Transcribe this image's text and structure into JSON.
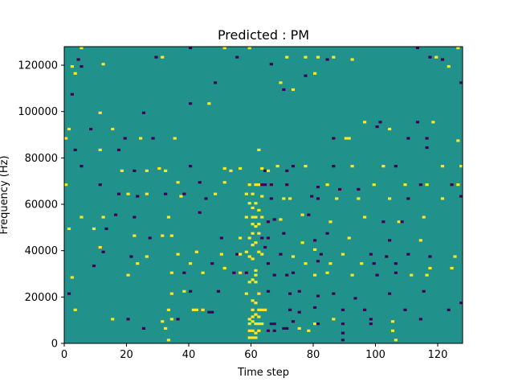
{
  "chart_data": {
    "type": "heatmap",
    "title": "Predicted : PM",
    "xlabel": "Time step",
    "ylabel": "Frequency (Hz)",
    "xlim": [
      0,
      128
    ],
    "ylim": [
      0,
      128000
    ],
    "xticks": [
      0,
      20,
      40,
      60,
      80,
      100,
      120
    ],
    "yticks": [
      0,
      20000,
      40000,
      60000,
      80000,
      100000,
      120000
    ],
    "ytick_labels": [
      "0",
      "20000",
      "40000",
      "60000",
      "80000",
      "100000",
      "120000"
    ],
    "n_freq_bins": 128,
    "value_scale": {
      "min": -1,
      "max": 1
    },
    "colors": {
      "-1": "#440154",
      "0": "#21918c",
      "1": "#fde725"
    },
    "background_value": 0,
    "cells_note_format": "[time_step, freq_bin_index, value]",
    "cells": [
      [
        5,
        127,
        1
      ],
      [
        40,
        127,
        -1
      ],
      [
        51,
        127,
        1
      ],
      [
        59,
        127,
        1
      ],
      [
        113,
        127,
        -1
      ],
      [
        126,
        127,
        1
      ],
      [
        4,
        122,
        -1
      ],
      [
        29,
        123,
        -1
      ],
      [
        31,
        123,
        1
      ],
      [
        55,
        123,
        -1
      ],
      [
        71,
        123,
        1
      ],
      [
        77,
        123,
        1
      ],
      [
        81,
        123,
        1
      ],
      [
        84,
        122,
        -1
      ],
      [
        86,
        123,
        1
      ],
      [
        117,
        123,
        -1
      ],
      [
        119,
        123,
        1
      ],
      [
        121,
        122,
        -1
      ],
      [
        2,
        119,
        1
      ],
      [
        5,
        119,
        -1
      ],
      [
        12,
        120,
        1
      ],
      [
        66,
        120,
        -1
      ],
      [
        92,
        122,
        1
      ],
      [
        123,
        119,
        1
      ],
      [
        3,
        116,
        1
      ],
      [
        48,
        112,
        -1
      ],
      [
        69,
        112,
        1
      ],
      [
        70,
        109,
        -1
      ],
      [
        77,
        115,
        -1
      ],
      [
        80,
        116,
        1
      ],
      [
        73,
        109,
        1
      ],
      [
        127,
        112,
        -1
      ],
      [
        2,
        107,
        -1
      ],
      [
        40,
        103,
        -1
      ],
      [
        46,
        103,
        1
      ],
      [
        11,
        99,
        1
      ],
      [
        25,
        99,
        -1
      ],
      [
        96,
        95,
        1
      ],
      [
        101,
        95,
        -1
      ],
      [
        113,
        95,
        -1
      ],
      [
        118,
        95,
        1
      ],
      [
        1,
        92,
        1
      ],
      [
        8,
        92,
        -1
      ],
      [
        15,
        92,
        1
      ],
      [
        104,
        92,
        1
      ],
      [
        100,
        93,
        -1
      ],
      [
        0,
        88,
        1
      ],
      [
        19,
        88,
        -1
      ],
      [
        24,
        88,
        1
      ],
      [
        28,
        88,
        -1
      ],
      [
        35,
        88,
        1
      ],
      [
        90,
        88,
        1
      ],
      [
        91,
        88,
        1
      ],
      [
        86,
        88,
        -1
      ],
      [
        110,
        88,
        -1
      ],
      [
        116,
        88,
        -1
      ],
      [
        126,
        87,
        1
      ],
      [
        3,
        83,
        -1
      ],
      [
        11,
        83,
        1
      ],
      [
        17,
        83,
        -1
      ],
      [
        62,
        83,
        1
      ],
      [
        116,
        84,
        -1
      ],
      [
        5,
        76,
        -1
      ],
      [
        18,
        74,
        1
      ],
      [
        22,
        74,
        -1
      ],
      [
        26,
        74,
        1
      ],
      [
        30,
        75,
        1
      ],
      [
        32,
        74,
        1
      ],
      [
        40,
        76,
        -1
      ],
      [
        51,
        75,
        1
      ],
      [
        53,
        74,
        1
      ],
      [
        56,
        75,
        1
      ],
      [
        63,
        75,
        1
      ],
      [
        64,
        74,
        -1
      ],
      [
        65,
        74,
        1
      ],
      [
        68,
        76,
        1
      ],
      [
        71,
        74,
        -1
      ],
      [
        73,
        76,
        -1
      ],
      [
        77,
        76,
        1
      ],
      [
        86,
        76,
        -1
      ],
      [
        92,
        76,
        1
      ],
      [
        102,
        76,
        1
      ],
      [
        106,
        76,
        -1
      ],
      [
        121,
        76,
        1
      ],
      [
        127,
        76,
        1
      ],
      [
        0,
        68,
        1
      ],
      [
        11,
        68,
        -1
      ],
      [
        36,
        69,
        1
      ],
      [
        43,
        69,
        -1
      ],
      [
        51,
        69,
        1
      ],
      [
        59,
        68,
        1
      ],
      [
        61,
        68,
        1
      ],
      [
        62,
        68,
        1
      ],
      [
        63,
        68,
        -1
      ],
      [
        64,
        68,
        -1
      ],
      [
        66,
        68,
        -1
      ],
      [
        71,
        68,
        -1
      ],
      [
        81,
        67,
        -1
      ],
      [
        84,
        68,
        1
      ],
      [
        88,
        66,
        -1
      ],
      [
        94,
        66,
        -1
      ],
      [
        99,
        68,
        1
      ],
      [
        109,
        68,
        1
      ],
      [
        114,
        68,
        -1
      ],
      [
        116,
        68,
        1
      ],
      [
        124,
        68,
        -1
      ],
      [
        126,
        68,
        1
      ],
      [
        17,
        64,
        -1
      ],
      [
        20,
        64,
        1
      ],
      [
        23,
        63,
        -1
      ],
      [
        26,
        64,
        1
      ],
      [
        32,
        64,
        -1
      ],
      [
        37,
        63,
        1
      ],
      [
        38,
        64,
        -1
      ],
      [
        45,
        62,
        -1
      ],
      [
        48,
        64,
        1
      ],
      [
        58,
        64,
        1
      ],
      [
        60,
        64,
        1
      ],
      [
        63,
        63,
        1
      ],
      [
        66,
        62,
        -1
      ],
      [
        70,
        62,
        1
      ],
      [
        72,
        62,
        1
      ],
      [
        79,
        63,
        -1
      ],
      [
        81,
        62,
        -1
      ],
      [
        87,
        62,
        1
      ],
      [
        94,
        62,
        1
      ],
      [
        104,
        62,
        1
      ],
      [
        110,
        62,
        -1
      ],
      [
        121,
        62,
        1
      ],
      [
        127,
        63,
        -1
      ],
      [
        5,
        54,
        1
      ],
      [
        12,
        54,
        1
      ],
      [
        16,
        55,
        -1
      ],
      [
        22,
        54,
        -1
      ],
      [
        33,
        54,
        1
      ],
      [
        43,
        56,
        -1
      ],
      [
        58,
        54,
        1
      ],
      [
        60,
        54,
        1
      ],
      [
        61,
        54,
        1
      ],
      [
        63,
        54,
        1
      ],
      [
        65,
        52,
        -1
      ],
      [
        67,
        53,
        -1
      ],
      [
        69,
        53,
        1
      ],
      [
        76,
        55,
        1
      ],
      [
        78,
        55,
        -1
      ],
      [
        85,
        52,
        1
      ],
      [
        96,
        54,
        1
      ],
      [
        102,
        52,
        -1
      ],
      [
        107,
        52,
        1
      ],
      [
        108,
        52,
        -1
      ],
      [
        115,
        54,
        1
      ],
      [
        1,
        49,
        1
      ],
      [
        9,
        49,
        1
      ],
      [
        13,
        49,
        -1
      ],
      [
        22,
        46,
        1
      ],
      [
        27,
        45,
        -1
      ],
      [
        31,
        46,
        1
      ],
      [
        34,
        46,
        1
      ],
      [
        50,
        45,
        -1
      ],
      [
        56,
        45,
        1
      ],
      [
        59,
        45,
        1
      ],
      [
        60,
        47,
        1
      ],
      [
        62,
        47,
        1
      ],
      [
        63,
        45,
        -1
      ],
      [
        65,
        45,
        -1
      ],
      [
        70,
        47,
        -1
      ],
      [
        76,
        43,
        1
      ],
      [
        80,
        44,
        -1
      ],
      [
        84,
        47,
        -1
      ],
      [
        91,
        45,
        1
      ],
      [
        104,
        44,
        -1
      ],
      [
        114,
        44,
        1
      ],
      [
        11,
        41,
        1
      ],
      [
        12,
        39,
        -1
      ],
      [
        21,
        37,
        -1
      ],
      [
        26,
        37,
        1
      ],
      [
        36,
        38,
        1
      ],
      [
        42,
        39,
        1
      ],
      [
        50,
        38,
        1
      ],
      [
        55,
        38,
        -1
      ],
      [
        56,
        38,
        1
      ],
      [
        58,
        39,
        1
      ],
      [
        62,
        39,
        1
      ],
      [
        63,
        38,
        1
      ],
      [
        64,
        41,
        -1
      ],
      [
        69,
        38,
        -1
      ],
      [
        73,
        37,
        1
      ],
      [
        80,
        40,
        1
      ],
      [
        82,
        38,
        -1
      ],
      [
        89,
        38,
        1
      ],
      [
        98,
        38,
        -1
      ],
      [
        103,
        37,
        -1
      ],
      [
        110,
        38,
        -1
      ],
      [
        117,
        37,
        -1
      ],
      [
        125,
        37,
        1
      ],
      [
        9,
        33,
        -1
      ],
      [
        23,
        34,
        1
      ],
      [
        40,
        34,
        1
      ],
      [
        47,
        34,
        -1
      ],
      [
        65,
        34,
        -1
      ],
      [
        77,
        34,
        1
      ],
      [
        81,
        35,
        -1
      ],
      [
        85,
        34,
        1
      ],
      [
        95,
        34,
        1
      ],
      [
        99,
        34,
        -1
      ],
      [
        106,
        34,
        -1
      ],
      [
        117,
        32,
        1
      ],
      [
        124,
        32,
        1
      ],
      [
        2,
        28,
        1
      ],
      [
        20,
        29,
        1
      ],
      [
        34,
        30,
        1
      ],
      [
        38,
        30,
        -1
      ],
      [
        44,
        30,
        1
      ],
      [
        51,
        32,
        1
      ],
      [
        54,
        30,
        -1
      ],
      [
        56,
        30,
        1
      ],
      [
        58,
        30,
        -1
      ],
      [
        61,
        31,
        1
      ],
      [
        61,
        29,
        1
      ],
      [
        67,
        29,
        -1
      ],
      [
        71,
        29,
        -1
      ],
      [
        73,
        30,
        -1
      ],
      [
        80,
        29,
        1
      ],
      [
        84,
        30,
        1
      ],
      [
        92,
        29,
        1
      ],
      [
        100,
        29,
        -1
      ],
      [
        106,
        30,
        -1
      ],
      [
        111,
        29,
        1
      ],
      [
        116,
        29,
        1
      ],
      [
        1,
        21,
        -1
      ],
      [
        34,
        21,
        1
      ],
      [
        38,
        22,
        1
      ],
      [
        40,
        22,
        -1
      ],
      [
        49,
        22,
        -1
      ],
      [
        58,
        21,
        1
      ],
      [
        62,
        21,
        1
      ],
      [
        65,
        22,
        -1
      ],
      [
        72,
        21,
        -1
      ],
      [
        75,
        22,
        -1
      ],
      [
        81,
        20,
        -1
      ],
      [
        86,
        21,
        -1
      ],
      [
        93,
        19,
        -1
      ],
      [
        104,
        21,
        -1
      ],
      [
        115,
        22,
        -1
      ],
      [
        127,
        17,
        -1
      ],
      [
        3,
        14,
        1
      ],
      [
        33,
        14,
        1
      ],
      [
        41,
        14,
        1
      ],
      [
        42,
        14,
        1
      ],
      [
        44,
        14,
        1
      ],
      [
        46,
        13,
        -1
      ],
      [
        47,
        13,
        -1
      ],
      [
        60,
        14,
        1
      ],
      [
        62,
        14,
        1
      ],
      [
        63,
        14,
        1
      ],
      [
        64,
        14,
        1
      ],
      [
        72,
        14,
        -1
      ],
      [
        75,
        13,
        -1
      ],
      [
        80,
        15,
        -1
      ],
      [
        89,
        14,
        -1
      ],
      [
        96,
        14,
        -1
      ],
      [
        109,
        14,
        -1
      ],
      [
        123,
        14,
        -1
      ],
      [
        15,
        10,
        1
      ],
      [
        20,
        10,
        -1
      ],
      [
        31,
        9,
        1
      ],
      [
        34,
        10,
        1
      ],
      [
        36,
        10,
        -1
      ],
      [
        59,
        8,
        1
      ],
      [
        60,
        9,
        1
      ],
      [
        61,
        8,
        1
      ],
      [
        62,
        8,
        1
      ],
      [
        63,
        8,
        1
      ],
      [
        66,
        8,
        -1
      ],
      [
        67,
        8,
        -1
      ],
      [
        70,
        6,
        -1
      ],
      [
        71,
        6,
        -1
      ],
      [
        73,
        9,
        -1
      ],
      [
        75,
        6,
        1
      ],
      [
        80,
        8,
        1
      ],
      [
        81,
        8,
        -1
      ],
      [
        86,
        10,
        1
      ],
      [
        89,
        8,
        -1
      ],
      [
        98,
        10,
        -1
      ],
      [
        98,
        8,
        -1
      ],
      [
        105,
        9,
        1
      ],
      [
        114,
        10,
        -1
      ],
      [
        25,
        6,
        -1
      ],
      [
        32,
        6,
        1
      ],
      [
        59,
        5,
        1
      ],
      [
        60,
        5,
        1
      ],
      [
        62,
        5,
        1
      ],
      [
        65,
        5,
        -1
      ],
      [
        67,
        5,
        -1
      ],
      [
        78,
        5,
        1
      ],
      [
        89,
        4,
        -1
      ],
      [
        105,
        5,
        1
      ],
      [
        33,
        1,
        1
      ],
      [
        89,
        1,
        -1
      ],
      [
        106,
        1,
        1
      ],
      [
        59,
        37,
        1
      ],
      [
        60,
        36,
        1
      ],
      [
        60,
        42,
        1
      ],
      [
        61,
        43,
        1
      ],
      [
        60,
        58,
        1
      ],
      [
        61,
        60,
        1
      ],
      [
        59,
        60,
        1
      ],
      [
        62,
        57,
        1
      ],
      [
        61,
        50,
        1
      ],
      [
        62,
        51,
        1
      ],
      [
        60,
        51,
        1
      ],
      [
        59,
        26,
        1
      ],
      [
        60,
        27,
        1
      ],
      [
        61,
        26,
        1
      ],
      [
        60,
        18,
        1
      ],
      [
        61,
        17,
        1
      ],
      [
        61,
        12,
        1
      ],
      [
        62,
        11,
        1
      ],
      [
        60,
        11,
        1
      ],
      [
        59,
        2,
        1
      ],
      [
        60,
        2,
        1
      ],
      [
        61,
        2,
        1
      ],
      [
        59,
        10,
        1
      ],
      [
        61,
        4,
        1
      ]
    ]
  }
}
